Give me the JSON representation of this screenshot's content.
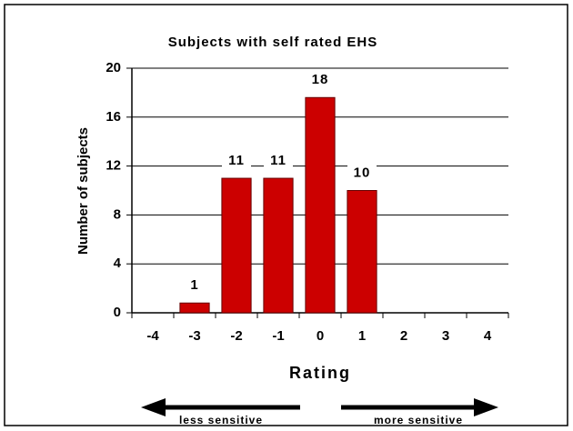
{
  "chart_data": {
    "type": "bar",
    "title": "Subjects with self rated EHS",
    "x_label": "Rating",
    "y_label": "Number of subjects",
    "categories": [
      "-4",
      "-3",
      "-2",
      "-1",
      "0",
      "1",
      "2",
      "3",
      "4"
    ],
    "values": [
      0,
      0.8,
      11,
      11,
      17.6,
      10,
      0,
      0,
      0
    ],
    "value_labels": [
      null,
      "1",
      "11",
      "11",
      "18",
      "10",
      null,
      null,
      null
    ],
    "color": "#cc0000",
    "ylim": [
      0,
      20
    ],
    "yticks": [
      0,
      4,
      8,
      12,
      16,
      20
    ],
    "grid": true,
    "annotations": [
      "less sensitive",
      "more sensitive"
    ]
  }
}
